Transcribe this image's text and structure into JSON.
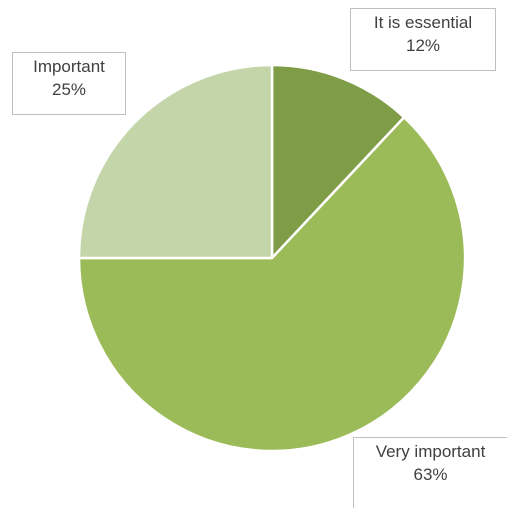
{
  "chart_data": {
    "type": "pie",
    "slices": [
      {
        "name": "It is essential",
        "value": 12,
        "value_label": "12%",
        "color": "#7f9c47"
      },
      {
        "name": "Very important",
        "value": 63,
        "value_label": "63%",
        "color": "#9bbb59"
      },
      {
        "name": "Important",
        "value": 25,
        "value_label": "25%",
        "color": "#c4d6a9"
      }
    ],
    "start_angle_deg": 0,
    "direction": "clockwise",
    "slice_border_color": "#ffffff",
    "legend": "none",
    "data_labels": "callout"
  }
}
